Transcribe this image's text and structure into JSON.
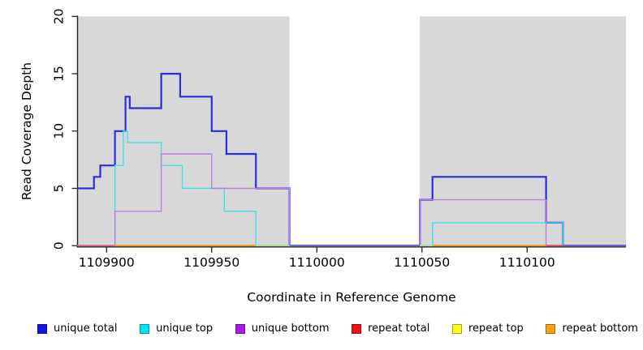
{
  "chart_data": {
    "type": "line",
    "subtype": "step-coverage",
    "title": "",
    "xlabel": "Coordinate in Reference Genome",
    "ylabel": "Read Coverage Depth",
    "xlim": [
      1109886,
      1110147
    ],
    "ylim": [
      0,
      20
    ],
    "x_ticks": [
      1109900,
      1109950,
      1110000,
      1110050,
      1110100
    ],
    "y_ticks": [
      0,
      5,
      10,
      15,
      20
    ],
    "grid": false,
    "plot_bg": "#ffffff",
    "background_bands": [
      {
        "x0": 1109886,
        "x1": 1109987,
        "color": "#d8d8d8"
      },
      {
        "x0": 1110049,
        "x1": 1110147,
        "color": "#d8d8d8"
      }
    ],
    "series": [
      {
        "id": "unique-total",
        "name": "unique total",
        "color": "#2b2be2",
        "width": 2.2,
        "parts": [
          [
            [
              1109886,
              5
            ],
            [
              1109894,
              5
            ],
            [
              1109894,
              6
            ],
            [
              1109897,
              6
            ],
            [
              1109897,
              7
            ],
            [
              1109904,
              7
            ],
            [
              1109904,
              10
            ],
            [
              1109909,
              10
            ],
            [
              1109909,
              13
            ],
            [
              1109911,
              13
            ],
            [
              1109911,
              12
            ],
            [
              1109926,
              12
            ],
            [
              1109926,
              15
            ],
            [
              1109935,
              15
            ],
            [
              1109935,
              13
            ],
            [
              1109950,
              13
            ],
            [
              1109950,
              10
            ],
            [
              1109957,
              10
            ],
            [
              1109957,
              8
            ],
            [
              1109971,
              8
            ],
            [
              1109971,
              5
            ],
            [
              1109987,
              5
            ],
            [
              1109987,
              0
            ]
          ],
          [
            [
              1110049,
              0
            ],
            [
              1110049,
              4
            ],
            [
              1110055,
              4
            ],
            [
              1110055,
              6
            ],
            [
              1110109,
              6
            ],
            [
              1110109,
              2
            ],
            [
              1110117,
              2
            ],
            [
              1110117,
              0
            ]
          ]
        ]
      },
      {
        "id": "unique-top",
        "name": "unique top",
        "color": "#45dfe8",
        "width": 1.4,
        "parts": [
          [
            [
              1109904,
              0
            ],
            [
              1109904,
              7
            ],
            [
              1109908,
              7
            ],
            [
              1109908,
              10
            ],
            [
              1109910,
              10
            ],
            [
              1109910,
              9
            ],
            [
              1109926,
              9
            ],
            [
              1109926,
              7
            ],
            [
              1109936,
              7
            ],
            [
              1109936,
              5
            ],
            [
              1109956,
              5
            ],
            [
              1109956,
              3
            ],
            [
              1109971,
              3
            ],
            [
              1109971,
              0
            ]
          ],
          [
            [
              1110055,
              0
            ],
            [
              1110055,
              2
            ],
            [
              1110117,
              2
            ],
            [
              1110117,
              0
            ]
          ]
        ]
      },
      {
        "id": "unique-bottom",
        "name": "unique bottom",
        "color": "#bc7fe2",
        "width": 1.4,
        "parts": [
          [
            [
              1109904,
              0
            ],
            [
              1109904,
              3
            ],
            [
              1109926,
              3
            ],
            [
              1109926,
              8
            ],
            [
              1109950,
              8
            ],
            [
              1109950,
              5
            ],
            [
              1109987,
              5
            ],
            [
              1109987,
              0
            ]
          ],
          [
            [
              1110049,
              0
            ],
            [
              1110049,
              4
            ],
            [
              1110109,
              4
            ],
            [
              1110109,
              0
            ]
          ]
        ]
      },
      {
        "id": "repeat-total",
        "name": "repeat total",
        "color": "#e22222",
        "width": 1.4,
        "parts": [
          [
            [
              1109886,
              0
            ],
            [
              1109904,
              0
            ]
          ],
          [
            [
              1110109,
              0
            ],
            [
              1110117,
              0
            ]
          ]
        ]
      },
      {
        "id": "repeat-top",
        "name": "repeat top",
        "color": "#f5f540",
        "width": 1.4,
        "parts": [
          [
            [
              1109971,
              0
            ],
            [
              1109987,
              0
            ]
          ],
          [
            [
              1110049,
              0
            ],
            [
              1110055,
              0
            ]
          ]
        ]
      },
      {
        "id": "repeat-bottom",
        "name": "repeat bottom",
        "color": "#ff9d1f",
        "width": 1.6,
        "parts": [
          [
            [
              1109904,
              0
            ],
            [
              1109971,
              0
            ]
          ],
          [
            [
              1110055,
              0
            ],
            [
              1110109,
              0
            ]
          ]
        ]
      }
    ],
    "baseline_segments": [
      {
        "x0": 1109886,
        "x1": 1109904,
        "color": "#e2699e"
      },
      {
        "x0": 1109904,
        "x1": 1109971,
        "color": "#ff9c20"
      },
      {
        "x0": 1109971,
        "x1": 1109987,
        "color": "#a4d8a4"
      },
      {
        "x0": 1109987,
        "x1": 1110049,
        "color": "#5a50e2"
      },
      {
        "x0": 1110049,
        "x1": 1110055,
        "color": "#a4d8a4"
      },
      {
        "x0": 1110055,
        "x1": 1110109,
        "color": "#ff9c20"
      },
      {
        "x0": 1110109,
        "x1": 1110117,
        "color": "#e25a84"
      },
      {
        "x0": 1110117,
        "x1": 1110147,
        "color": "#5a50e2"
      }
    ],
    "legend_position": "bottom"
  },
  "legend": {
    "items": [
      {
        "label": "unique total",
        "color": "#1414e8"
      },
      {
        "label": "unique top",
        "color": "#00e5ee"
      },
      {
        "label": "unique bottom",
        "color": "#a11fe8"
      },
      {
        "label": "repeat total",
        "color": "#ee1111"
      },
      {
        "label": "repeat top",
        "color": "#fdfd1f"
      },
      {
        "label": "repeat bottom",
        "color": "#ffa011"
      }
    ]
  }
}
